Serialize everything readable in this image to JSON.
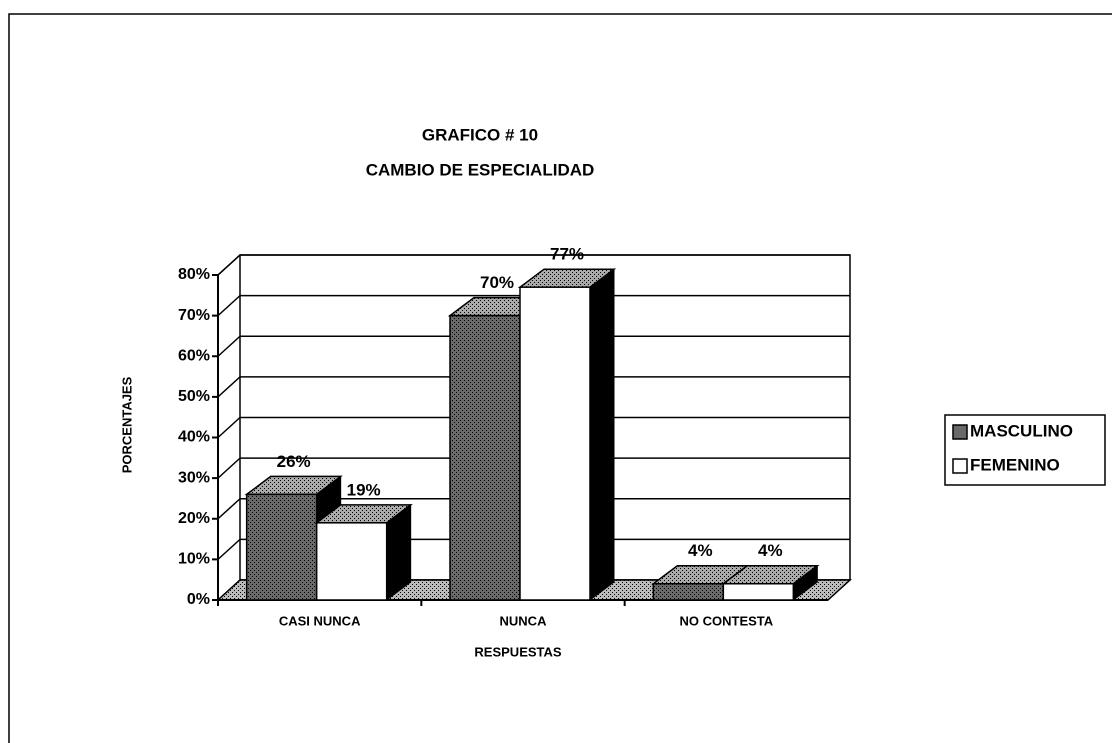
{
  "chart_data": {
    "type": "bar3d",
    "title": "GRAFICO # 10",
    "subtitle": "CAMBIO DE ESPECIALIDAD",
    "categories": [
      "CASI NUNCA",
      "NUNCA",
      "NO CONTESTA"
    ],
    "series": [
      {
        "name": "MASCULINO",
        "color": "#6a6a6a",
        "values": [
          26,
          70,
          4
        ],
        "value_labels": [
          "26%",
          "70%",
          "4%"
        ]
      },
      {
        "name": "FEMENINO",
        "color": "#ffffff",
        "values": [
          19,
          77,
          4
        ],
        "value_labels": [
          "19%",
          "77%",
          "4%"
        ]
      }
    ],
    "xlabel": "RESPUESTAS",
    "ylabel": "PORCENTAJES",
    "ylim": [
      0,
      80
    ],
    "yticks": [
      {
        "value": 0,
        "label": "0%"
      },
      {
        "value": 10,
        "label": "10%"
      },
      {
        "value": 20,
        "label": "20%"
      },
      {
        "value": 30,
        "label": "30%"
      },
      {
        "value": 40,
        "label": "40%"
      },
      {
        "value": 50,
        "label": "50%"
      },
      {
        "value": 60,
        "label": "60%"
      },
      {
        "value": 70,
        "label": "70%"
      },
      {
        "value": 80,
        "label": "80%"
      }
    ],
    "grid": true
  }
}
